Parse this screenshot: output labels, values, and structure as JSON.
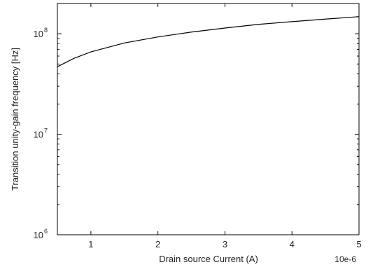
{
  "chart_data": {
    "type": "line",
    "title": "",
    "xlabel": "Drain source Current (A)",
    "ylabel": "Transition unity-gain frequency [Hz]",
    "x_exponent_label": "10e-6",
    "x_scale": "linear",
    "y_scale": "log",
    "xlim": [
      0.5,
      5
    ],
    "ylim": [
      1000000,
      200000000
    ],
    "x_ticks": [
      1,
      2,
      3,
      4,
      5
    ],
    "x_tick_labels": [
      "1",
      "2",
      "3",
      "4",
      "5"
    ],
    "y_ticks": [
      {
        "value": 1000000,
        "base": "10",
        "exp": "6"
      },
      {
        "value": 10000000,
        "base": "10",
        "exp": "7"
      },
      {
        "value": 100000000,
        "base": "10",
        "exp": "8"
      }
    ],
    "grid": false,
    "legend": "none",
    "series": [
      {
        "color": "#000000",
        "points": [
          {
            "x": 0.5,
            "y": 47000000
          },
          {
            "x": 0.75,
            "y": 57000000
          },
          {
            "x": 1.0,
            "y": 66000000
          },
          {
            "x": 1.5,
            "y": 81000000
          },
          {
            "x": 2.0,
            "y": 93000000
          },
          {
            "x": 2.5,
            "y": 104000000
          },
          {
            "x": 3.0,
            "y": 114000000
          },
          {
            "x": 3.5,
            "y": 124000000
          },
          {
            "x": 4.0,
            "y": 132000000
          },
          {
            "x": 4.5,
            "y": 140000000
          },
          {
            "x": 5.0,
            "y": 148000000
          }
        ]
      }
    ]
  }
}
